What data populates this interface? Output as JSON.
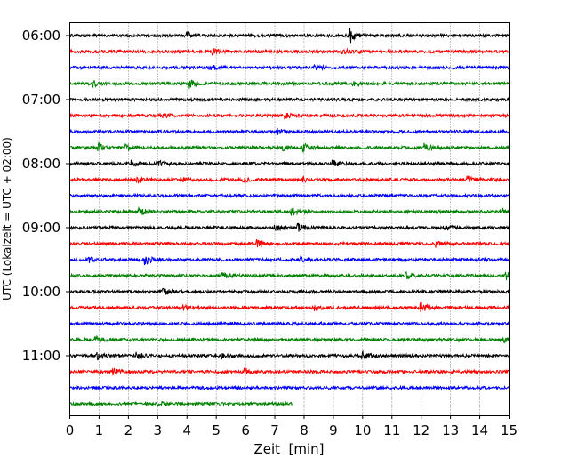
{
  "chart_data": {
    "type": "line",
    "title": "",
    "xlabel": "Zeit  [min]",
    "ylabel": "UTC (Lokalzeit = UTC + 02:00)",
    "xlim": [
      0,
      15
    ],
    "x_ticks": [
      "0",
      "1",
      "2",
      "3",
      "4",
      "5",
      "6",
      "7",
      "8",
      "9",
      "10",
      "11",
      "12",
      "13",
      "14",
      "15"
    ],
    "y_ticks": [
      "06:00",
      "07:00",
      "08:00",
      "09:00",
      "10:00",
      "11:00"
    ],
    "grid": "vertical dotted",
    "trace_interval_min": 15,
    "trace_colors": [
      "#000000",
      "#ff0000",
      "#0000ff",
      "#008000"
    ],
    "traces": [
      {
        "start": "06:00",
        "end_min": 15,
        "events": [
          [
            9.6,
            3.5
          ],
          [
            4.0,
            1.6
          ]
        ]
      },
      {
        "start": "06:15",
        "end_min": 15,
        "events": [
          [
            9.3,
            1.8
          ],
          [
            4.9,
            1.3
          ]
        ]
      },
      {
        "start": "06:30",
        "end_min": 15,
        "events": [
          [
            8.4,
            1.8
          ],
          [
            4.8,
            1.3
          ]
        ]
      },
      {
        "start": "06:45",
        "end_min": 15,
        "events": [
          [
            4.1,
            2.2
          ],
          [
            0.8,
            1.6
          ],
          [
            9.7,
            1.2
          ]
        ]
      },
      {
        "start": "07:00",
        "end_min": 15,
        "events": []
      },
      {
        "start": "07:15",
        "end_min": 15,
        "events": [
          [
            7.3,
            1.8
          ],
          [
            3.1,
            1.4
          ]
        ]
      },
      {
        "start": "07:30",
        "end_min": 15,
        "events": [
          [
            7.1,
            1.3
          ]
        ]
      },
      {
        "start": "07:45",
        "end_min": 15,
        "events": [
          [
            1.0,
            2.0
          ],
          [
            1.9,
            1.6
          ],
          [
            7.3,
            1.4
          ],
          [
            8.0,
            2.0
          ],
          [
            12.1,
            2.0
          ]
        ]
      },
      {
        "start": "08:00",
        "end_min": 15,
        "events": [
          [
            2.1,
            1.5
          ],
          [
            3.0,
            1.6
          ],
          [
            9.0,
            1.5
          ]
        ]
      },
      {
        "start": "08:15",
        "end_min": 15,
        "events": [
          [
            2.3,
            2.0
          ],
          [
            3.8,
            1.6
          ],
          [
            5.9,
            1.4
          ],
          [
            8.0,
            1.4
          ],
          [
            13.6,
            1.6
          ]
        ]
      },
      {
        "start": "08:30",
        "end_min": 15,
        "events": []
      },
      {
        "start": "08:45",
        "end_min": 15,
        "events": [
          [
            2.4,
            1.8
          ],
          [
            7.6,
            2.0
          ],
          [
            14.8,
            1.8
          ]
        ]
      },
      {
        "start": "09:00",
        "end_min": 15,
        "events": [
          [
            7.0,
            2.2
          ],
          [
            7.8,
            2.2
          ],
          [
            12.8,
            1.5
          ]
        ]
      },
      {
        "start": "09:15",
        "end_min": 15,
        "events": [
          [
            6.4,
            1.8
          ],
          [
            12.5,
            1.6
          ]
        ]
      },
      {
        "start": "09:30",
        "end_min": 15,
        "events": [
          [
            0.6,
            1.8
          ],
          [
            2.6,
            2.4
          ],
          [
            7.9,
            1.3
          ]
        ]
      },
      {
        "start": "09:45",
        "end_min": 15,
        "events": [
          [
            5.2,
            1.8
          ],
          [
            11.5,
            1.6
          ],
          [
            14.9,
            2.2
          ]
        ]
      },
      {
        "start": "10:00",
        "end_min": 15,
        "events": [
          [
            3.2,
            1.8
          ]
        ]
      },
      {
        "start": "10:15",
        "end_min": 15,
        "events": [
          [
            3.9,
            1.5
          ],
          [
            8.4,
            1.5
          ],
          [
            12.0,
            2.6
          ]
        ]
      },
      {
        "start": "10:30",
        "end_min": 15,
        "events": []
      },
      {
        "start": "10:45",
        "end_min": 15,
        "events": [
          [
            0.9,
            1.4
          ],
          [
            14.8,
            1.6
          ]
        ]
      },
      {
        "start": "11:00",
        "end_min": 15,
        "events": [
          [
            0.9,
            2.2
          ],
          [
            2.3,
            1.6
          ],
          [
            5.2,
            1.6
          ],
          [
            10.0,
            2.4
          ]
        ]
      },
      {
        "start": "11:15",
        "end_min": 15,
        "events": [
          [
            1.5,
            1.6
          ],
          [
            6.0,
            1.5
          ]
        ]
      },
      {
        "start": "11:30",
        "end_min": 15,
        "events": []
      },
      {
        "start": "11:45",
        "end_min": 7.6,
        "events": [
          [
            3.0,
            1.2
          ]
        ]
      }
    ]
  }
}
